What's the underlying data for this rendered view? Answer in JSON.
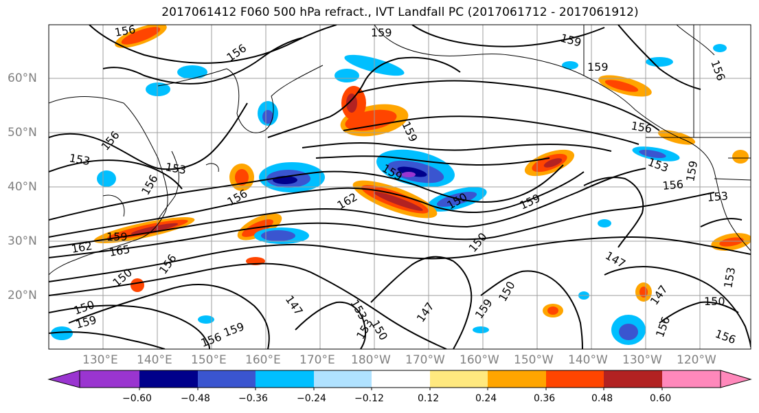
{
  "title": "2017061412 F060 500 hPa refract., IVT Landfall PC (2017061712 - 2017061912)",
  "lat_labels": [
    "60°N",
    "50°N",
    "40°N",
    "30°N",
    "20°N"
  ],
  "lon_labels": [
    "130°E",
    "140°E",
    "150°E",
    "160°E",
    "170°E",
    "180°W",
    "170°W",
    "160°W",
    "150°W",
    "140°W",
    "130°W",
    "120°W"
  ],
  "colorbar": {
    "tick_labels": [
      "−0.60",
      "−0.48",
      "−0.36",
      "−0.24",
      "−0.12",
      "0.12",
      "0.24",
      "0.36",
      "0.48",
      "0.60"
    ],
    "colors": [
      "#9a35d0",
      "#00008b",
      "#3a55d0",
      "#00bfff",
      "#b0e2ff",
      "#ffffff",
      "#ffe97f",
      "#ffa500",
      "#ff4500",
      "#b22222",
      "#ff88bb"
    ]
  },
  "contour_labels": [
    "156",
    "159",
    "156",
    "159",
    "159",
    "156",
    "156",
    "153",
    "159",
    "156",
    "159",
    "156",
    "153",
    "162",
    "159",
    "150",
    "159",
    "153",
    "162",
    "159",
    "165",
    "156",
    "156",
    "147",
    "150",
    "153",
    "150",
    "147",
    "153",
    "147",
    "159",
    "147",
    "150",
    "150",
    "156",
    "156",
    "159",
    "159",
    "153",
    "156",
    "150",
    "153",
    "150",
    "156"
  ]
}
